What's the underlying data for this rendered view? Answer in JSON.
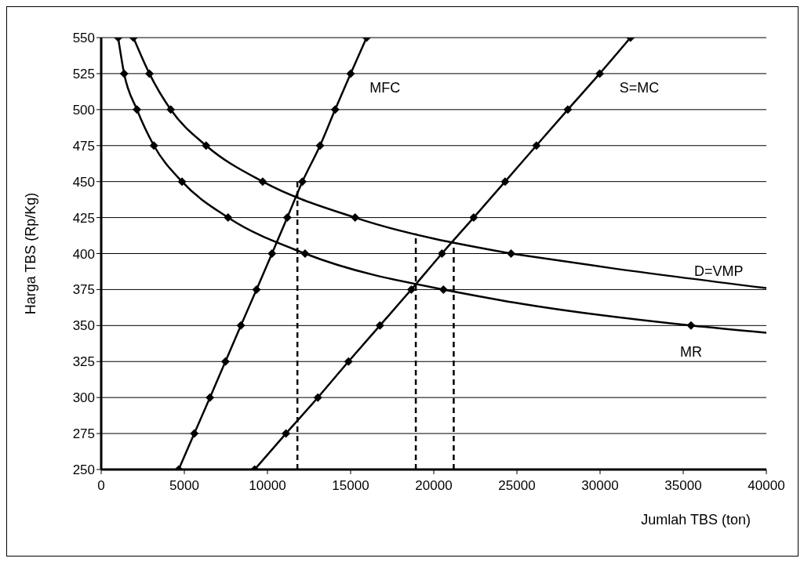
{
  "chart_data": {
    "type": "line",
    "xlabel": "Jumlah TBS (ton)",
    "ylabel": "Harga TBS (Rp/Kg)",
    "xlim": [
      0,
      40000
    ],
    "xticks": [
      0,
      5000,
      10000,
      15000,
      20000,
      25000,
      30000,
      35000,
      40000
    ],
    "ylim": [
      250,
      550
    ],
    "yticks": [
      250,
      275,
      300,
      325,
      350,
      375,
      400,
      425,
      450,
      475,
      500,
      525,
      550
    ],
    "grid": "y",
    "marker": "diamond",
    "line_style": "solid",
    "series": [
      {
        "name": "MFC",
        "color": "#000000",
        "x": [
          4660,
          5600,
          6540,
          7470,
          8400,
          9340,
          10270,
          11190,
          12100,
          13160,
          14070,
          15000,
          15960
        ],
        "values": [
          250,
          275,
          300,
          325,
          350,
          375,
          400,
          425,
          450,
          475,
          500,
          525,
          550
        ]
      },
      {
        "name": "S=MC",
        "color": "#000000",
        "x": [
          9230,
          11110,
          13030,
          14870,
          16760,
          18650,
          20490,
          22400,
          24290,
          26170,
          28060,
          29980,
          31830
        ],
        "values": [
          250,
          275,
          300,
          325,
          350,
          375,
          400,
          425,
          450,
          475,
          500,
          525,
          550
        ]
      },
      {
        "color": "#000000",
        "x": [
          1940,
          2900,
          4180,
          6310,
          9710,
          15270,
          24650
        ],
        "values": [
          550,
          525,
          500,
          475,
          450,
          425,
          400
        ]
      },
      {
        "name": "D=VMP",
        "color": "#000000",
        "x": [
          24650,
          30620,
          40000
        ],
        "values": [
          400,
          390,
          376
        ],
        "marker": "none"
      },
      {
        "color": "#000000",
        "x": [
          1020,
          1380,
          2150,
          3170,
          4860,
          7630,
          12260,
          20580
        ],
        "values": [
          550,
          525,
          500,
          475,
          450,
          425,
          400,
          375
        ]
      },
      {
        "name": "MR",
        "color": "#000000",
        "x": [
          20580,
          25340,
          35470,
          40000
        ],
        "values": [
          375,
          365,
          350,
          345
        ],
        "marker": "none"
      },
      {
        "color": "#000000",
        "x": [
          35470
        ],
        "values": [
          350
        ]
      },
      {
        "color": "#000000",
        "x": [
          11800,
          11800
        ],
        "values": [
          250,
          452
        ],
        "marker": "none",
        "line_style": "dashed"
      },
      {
        "color": "#000000",
        "x": [
          18920,
          18920
        ],
        "values": [
          250,
          414
        ],
        "marker": "none",
        "line_style": "dashed"
      },
      {
        "color": "#000000",
        "x": [
          21200,
          21200
        ],
        "values": [
          250,
          408
        ],
        "marker": "none",
        "line_style": "dashed"
      }
    ]
  }
}
